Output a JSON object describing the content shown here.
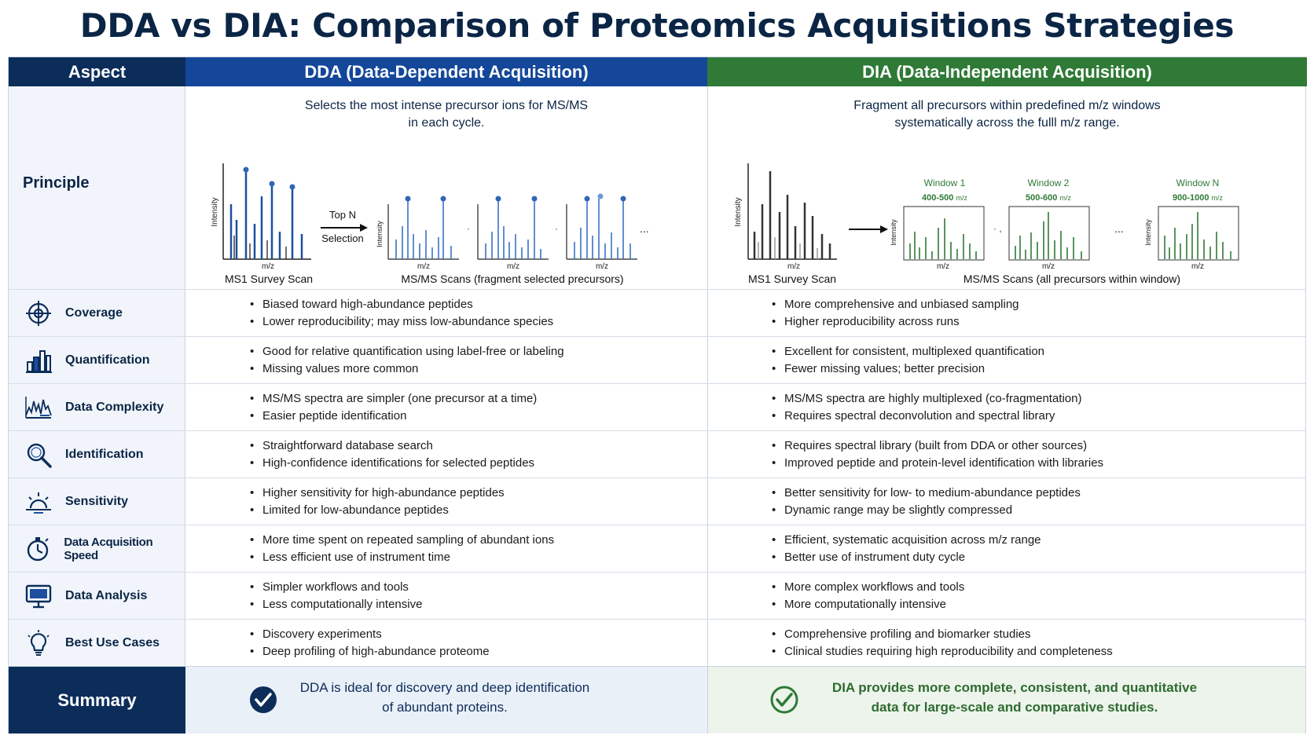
{
  "title": "DDA vs DIA: Comparison of Proteomics Acquisitions Strategies",
  "headers": {
    "aspect": "Aspect",
    "dda": "DDA (Data-Dependent Acquisition)",
    "dia": "DIA (Data-Independent Acquisition)"
  },
  "principle": {
    "label": "Principle",
    "dda_text_line1": "Selects the most intense precursor ions for MS/MS",
    "dda_text_line2": "in each cycle.",
    "dia_text_line1": "Fragment all precursors within predefined m/z windows",
    "dia_text_line2": "systematically across the fulll m/z range.",
    "dda_diagram": {
      "y_axis": "Intensity",
      "x_axis": "m/z",
      "arrow_label_line1": "Top N",
      "arrow_label_line2": "Selection",
      "ms1_caption": "MS1 Survey Scan",
      "ms2_caption": "MS/MS Scans (fragment selected precursors)",
      "ellipsis": "..."
    },
    "dia_diagram": {
      "y_axis": "Intensity",
      "x_axis": "m/z",
      "ms1_caption": "MS1 Survey Scan",
      "ms2_caption": "MS/MS Scans (all precursors within window)",
      "ellipsis": "...",
      "windows": [
        {
          "name": "Window 1",
          "range": "400-500",
          "unit": "m/z"
        },
        {
          "name": "Window 2",
          "range": "500-600",
          "unit": "m/z"
        },
        {
          "name": "Window N",
          "range": "900-1000",
          "unit": "m/z"
        }
      ]
    }
  },
  "rows": [
    {
      "label": "Coverage",
      "icon": "target-icon",
      "dda": [
        "Biased toward high-abundance peptides",
        "Lower reproducibility; may miss low-abundance species"
      ],
      "dia": [
        "More comprehensive and unbiased sampling",
        "Higher reproducibility across runs"
      ]
    },
    {
      "label": "Quantification",
      "icon": "bar-chart-icon",
      "dda": [
        "Good for relative quantification using label-free or labeling",
        "Missing values more common"
      ],
      "dia": [
        "Excellent for consistent, multiplexed quantification",
        "Fewer missing values; better precision"
      ]
    },
    {
      "label": "Data Complexity",
      "icon": "spectrum-icon",
      "dda": [
        "MS/MS spectra are simpler (one precursor at a time)",
        "Easier peptide identification"
      ],
      "dia": [
        "MS/MS spectra are highly multiplexed (co-fragmentation)",
        "Requires spectral deconvolution and spectral library"
      ]
    },
    {
      "label": "Identification",
      "icon": "magnifier-icon",
      "dda": [
        "Straightforward database search",
        "High-confidence identifications for selected peptides"
      ],
      "dia": [
        "Requires spectral library (built from DDA or other sources)",
        "Improved peptide and protein-level identification with libraries"
      ]
    },
    {
      "label": "Sensitivity",
      "icon": "sensitivity-icon",
      "dda": [
        "Higher sensitivity for high-abundance peptides",
        "Limited for low-abundance peptides"
      ],
      "dia": [
        "Better sensitivity for low- to medium-abundance peptides",
        "Dynamic range may be slightly compressed"
      ]
    },
    {
      "label": "Data Acquisition Speed",
      "icon": "stopwatch-icon",
      "dda": [
        "More time spent on repeated sampling of abundant ions",
        "Less efficient use of instrument time"
      ],
      "dia": [
        "Efficient, systematic acquisition across m/z range",
        "Better use of instrument duty cycle"
      ]
    },
    {
      "label": "Data Analysis",
      "icon": "monitor-icon",
      "dda": [
        "Simpler workflows and tools",
        "Less computationally intensive"
      ],
      "dia": [
        "More complex workflows and tools",
        "More computationally intensive"
      ]
    },
    {
      "label": "Best Use Cases",
      "icon": "lightbulb-icon",
      "dda": [
        "Discovery experiments",
        "Deep profiling of high-abundance proteome"
      ],
      "dia": [
        "Comprehensive profiling and biomarker studies",
        "Clinical studies requiring high reproducibility and completeness"
      ]
    }
  ],
  "summary": {
    "label": "Summary",
    "dda_line1": "DDA is ideal for discovery and deep identification",
    "dda_line2": "of abundant proteins.",
    "dia_line1": "DIA provides more complete, consistent, and quantitative",
    "dia_line2": "data for large-scale and comparative studies."
  },
  "colors": {
    "navy": "#0c2d5a",
    "dda_blue": "#14479a",
    "dia_green": "#2f7a36"
  }
}
